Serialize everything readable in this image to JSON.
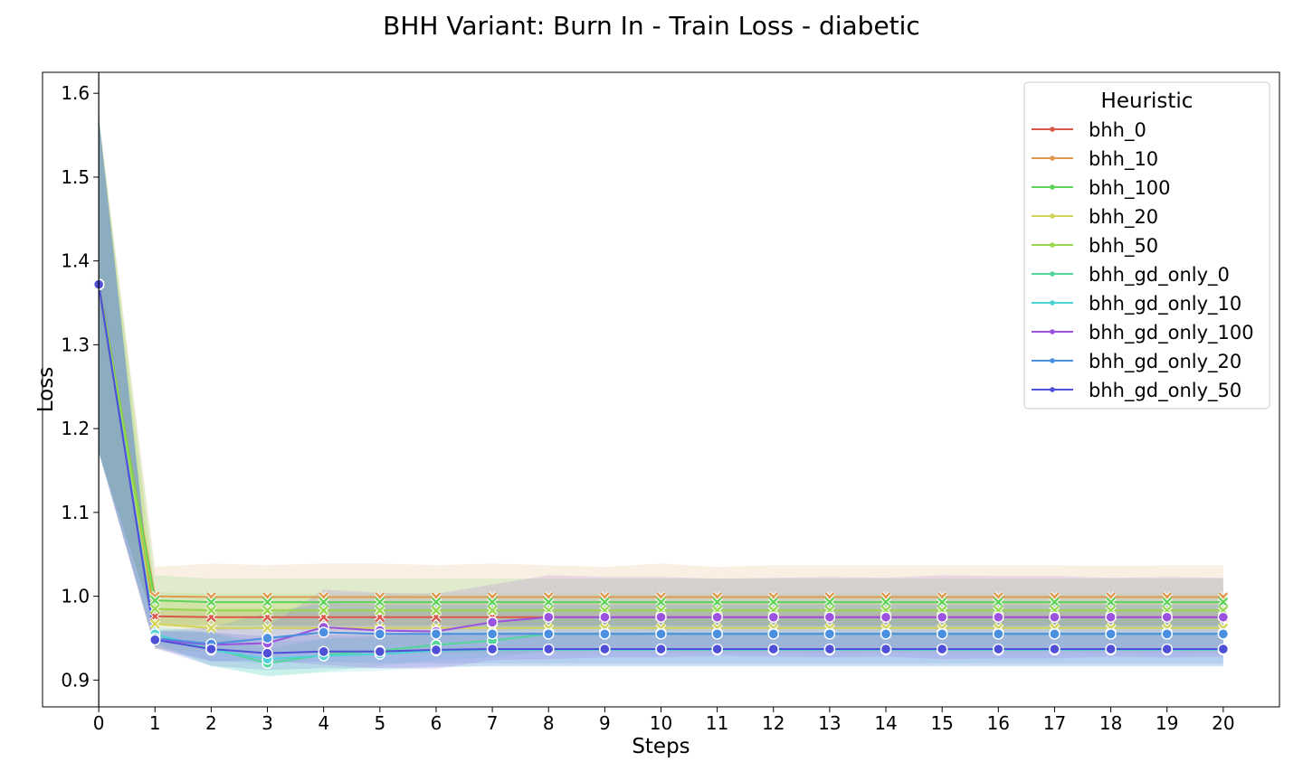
{
  "chart_data": {
    "type": "line",
    "title": "BHH Variant: Burn In - Train Loss - diabetic",
    "xlabel": "Steps",
    "ylabel": "Loss",
    "x": [
      0,
      1,
      2,
      3,
      4,
      5,
      6,
      7,
      8,
      9,
      10,
      11,
      12,
      13,
      14,
      15,
      16,
      17,
      18,
      19,
      20
    ],
    "xlim": [
      -1,
      21
    ],
    "ylim": [
      0.868,
      1.625
    ],
    "yticks": [
      0.9,
      1.0,
      1.1,
      1.2,
      1.3,
      1.4,
      1.5,
      1.6
    ],
    "ytick_labels": [
      "0.9",
      "1.0",
      "1.1",
      "1.2",
      "1.3",
      "1.4",
      "1.5",
      "1.6"
    ],
    "xtick_labels": [
      "0",
      "1",
      "2",
      "3",
      "4",
      "5",
      "6",
      "7",
      "8",
      "9",
      "10",
      "11",
      "12",
      "13",
      "14",
      "15",
      "16",
      "17",
      "18",
      "19",
      "20"
    ],
    "legend_title": "Heuristic",
    "legend_position": "upper right",
    "grid": false,
    "series": [
      {
        "name": "bhh_0",
        "color": "#d9584a",
        "marker": "x",
        "values": [
          1.372,
          0.976,
          0.975,
          0.975,
          0.975,
          0.975,
          0.975,
          0.975,
          0.975,
          0.975,
          0.975,
          0.975,
          0.975,
          0.975,
          0.975,
          0.975,
          0.975,
          0.975,
          0.975,
          0.975,
          0.975
        ],
        "band": [
          0.02,
          0.01,
          0.01,
          0.01,
          0.01,
          0.01,
          0.01,
          0.01,
          0.01,
          0.01,
          0.01,
          0.01,
          0.01,
          0.01,
          0.01,
          0.01,
          0.01,
          0.01,
          0.01,
          0.01,
          0.01
        ]
      },
      {
        "name": "bhh_10",
        "color": "#e09a4f",
        "marker": "x",
        "values": [
          1.372,
          1.0,
          0.999,
          0.999,
          0.999,
          0.999,
          0.999,
          0.999,
          0.999,
          0.999,
          0.999,
          0.999,
          0.999,
          0.999,
          0.999,
          0.999,
          0.999,
          0.999,
          0.999,
          0.999,
          0.999
        ],
        "band": [
          0.2,
          0.035,
          0.04,
          0.038,
          0.04,
          0.04,
          0.038,
          0.04,
          0.038,
          0.036,
          0.04,
          0.036,
          0.038,
          0.038,
          0.038,
          0.038,
          0.038,
          0.038,
          0.037,
          0.038,
          0.038
        ]
      },
      {
        "name": "bhh_100",
        "color": "#5ed35a",
        "marker": "x",
        "values": [
          1.372,
          0.995,
          0.993,
          0.993,
          0.993,
          0.993,
          0.993,
          0.993,
          0.993,
          0.993,
          0.993,
          0.993,
          0.993,
          0.993,
          0.993,
          0.993,
          0.993,
          0.993,
          0.993,
          0.993,
          0.993
        ],
        "band": [
          0.2,
          0.03,
          0.028,
          0.028,
          0.028,
          0.028,
          0.028,
          0.028,
          0.028,
          0.028,
          0.028,
          0.028,
          0.028,
          0.028,
          0.028,
          0.028,
          0.028,
          0.028,
          0.028,
          0.028,
          0.028
        ]
      },
      {
        "name": "bhh_20",
        "color": "#d2d45a",
        "marker": "x",
        "values": [
          1.372,
          0.967,
          0.962,
          0.962,
          0.962,
          0.962,
          0.962,
          0.962,
          0.962,
          0.962,
          0.962,
          0.962,
          0.962,
          0.962,
          0.962,
          0.962,
          0.962,
          0.962,
          0.962,
          0.962,
          0.962
        ],
        "band": [
          0.2,
          0.03,
          0.03,
          0.03,
          0.03,
          0.03,
          0.03,
          0.03,
          0.03,
          0.03,
          0.03,
          0.03,
          0.03,
          0.03,
          0.03,
          0.03,
          0.03,
          0.03,
          0.03,
          0.03,
          0.03
        ]
      },
      {
        "name": "bhh_50",
        "color": "#97d84f",
        "marker": "x",
        "values": [
          1.372,
          0.985,
          0.983,
          0.983,
          0.983,
          0.983,
          0.983,
          0.983,
          0.983,
          0.983,
          0.983,
          0.983,
          0.983,
          0.983,
          0.983,
          0.983,
          0.983,
          0.983,
          0.983,
          0.983,
          0.983
        ],
        "band": [
          0.2,
          0.02,
          0.02,
          0.02,
          0.02,
          0.02,
          0.02,
          0.02,
          0.02,
          0.02,
          0.02,
          0.02,
          0.02,
          0.02,
          0.02,
          0.02,
          0.02,
          0.02,
          0.02,
          0.02,
          0.02
        ]
      },
      {
        "name": "bhh_gd_only_0",
        "color": "#52d69a",
        "marker": "o",
        "values": [
          1.372,
          0.95,
          0.938,
          0.92,
          0.93,
          0.935,
          0.942,
          0.947,
          0.955,
          0.955,
          0.955,
          0.955,
          0.955,
          0.955,
          0.955,
          0.955,
          0.955,
          0.955,
          0.955,
          0.955,
          0.955
        ],
        "band": [
          0.2,
          0.01,
          0.02,
          0.016,
          0.02,
          0.018,
          0.018,
          0.02,
          0.02,
          0.02,
          0.02,
          0.02,
          0.02,
          0.02,
          0.02,
          0.02,
          0.02,
          0.02,
          0.02,
          0.02,
          0.02
        ]
      },
      {
        "name": "bhh_gd_only_10",
        "color": "#4dd3d3",
        "marker": "o",
        "values": [
          1.372,
          0.955,
          0.936,
          0.925,
          0.929,
          0.931,
          0.935,
          0.936,
          0.936,
          0.936,
          0.936,
          0.936,
          0.936,
          0.936,
          0.936,
          0.936,
          0.936,
          0.936,
          0.936,
          0.936,
          0.936
        ],
        "band": [
          0.2,
          0.01,
          0.02,
          0.02,
          0.02,
          0.02,
          0.02,
          0.02,
          0.02,
          0.02,
          0.02,
          0.02,
          0.02,
          0.02,
          0.02,
          0.02,
          0.02,
          0.02,
          0.02,
          0.02,
          0.02
        ]
      },
      {
        "name": "bhh_gd_only_100",
        "color": "#9b52de",
        "marker": "o",
        "values": [
          1.372,
          0.948,
          0.942,
          0.944,
          0.963,
          0.959,
          0.958,
          0.969,
          0.975,
          0.975,
          0.975,
          0.975,
          0.975,
          0.975,
          0.975,
          0.975,
          0.975,
          0.975,
          0.975,
          0.975,
          0.975
        ],
        "band": [
          0.2,
          0.01,
          0.02,
          0.02,
          0.045,
          0.045,
          0.045,
          0.045,
          0.05,
          0.048,
          0.048,
          0.046,
          0.047,
          0.048,
          0.047,
          0.05,
          0.049,
          0.049,
          0.047,
          0.048,
          0.047
        ]
      },
      {
        "name": "bhh_gd_only_20",
        "color": "#4a8fe0",
        "marker": "o",
        "values": [
          1.372,
          0.95,
          0.943,
          0.95,
          0.957,
          0.955,
          0.955,
          0.955,
          0.955,
          0.955,
          0.955,
          0.955,
          0.955,
          0.955,
          0.955,
          0.955,
          0.955,
          0.955,
          0.955,
          0.955,
          0.955
        ],
        "band": [
          0.2,
          0.01,
          0.02,
          0.03,
          0.035,
          0.035,
          0.035,
          0.035,
          0.035,
          0.035,
          0.035,
          0.035,
          0.035,
          0.035,
          0.035,
          0.035,
          0.035,
          0.035,
          0.035,
          0.035,
          0.035
        ]
      },
      {
        "name": "bhh_gd_only_50",
        "color": "#4f4fd8",
        "marker": "o",
        "values": [
          1.372,
          0.948,
          0.937,
          0.932,
          0.934,
          0.934,
          0.936,
          0.937,
          0.937,
          0.937,
          0.937,
          0.937,
          0.937,
          0.937,
          0.937,
          0.937,
          0.937,
          0.937,
          0.937,
          0.937,
          0.937
        ],
        "band": [
          0.2,
          0.01,
          0.02,
          0.02,
          0.02,
          0.02,
          0.02,
          0.02,
          0.02,
          0.02,
          0.02,
          0.02,
          0.02,
          0.02,
          0.02,
          0.02,
          0.02,
          0.02,
          0.02,
          0.02,
          0.02
        ]
      }
    ]
  }
}
